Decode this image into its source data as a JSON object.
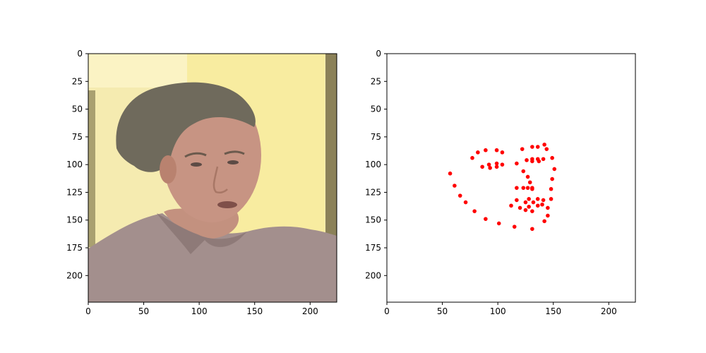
{
  "chart_data": [
    {
      "type": "image",
      "title": "",
      "xlabel": "",
      "ylabel": "",
      "xlim": [
        0,
        224
      ],
      "ylim": [
        224,
        0
      ],
      "x_ticks": [
        0,
        50,
        100,
        150,
        200
      ],
      "y_ticks": [
        0,
        25,
        50,
        75,
        100,
        125,
        150,
        175,
        200
      ],
      "image_content": "photo-frame-man-face",
      "colors": {
        "background_wall": "#f5ebb0",
        "bright_wall": "#fbf3c4",
        "hair": "#6f6a5c",
        "skin": "#c79483",
        "shirt": "#a38f8d",
        "door_frame": "#8b8158"
      }
    },
    {
      "type": "scatter",
      "title": "",
      "xlabel": "",
      "ylabel": "",
      "xlim": [
        0,
        224
      ],
      "ylim": [
        224,
        0
      ],
      "x_ticks": [
        0,
        50,
        100,
        150,
        200
      ],
      "y_ticks": [
        0,
        25,
        50,
        75,
        100,
        125,
        150,
        175,
        200
      ],
      "marker_color": "#ff0000",
      "points": [
        [
          57,
          108
        ],
        [
          61,
          119
        ],
        [
          66,
          128
        ],
        [
          71,
          134
        ],
        [
          79,
          142
        ],
        [
          89,
          149
        ],
        [
          101,
          153
        ],
        [
          115,
          156
        ],
        [
          131,
          158
        ],
        [
          142,
          151
        ],
        [
          145,
          146
        ],
        [
          145,
          139
        ],
        [
          148,
          131
        ],
        [
          148,
          122
        ],
        [
          149,
          113
        ],
        [
          151,
          104
        ],
        [
          149,
          94
        ],
        [
          77,
          94
        ],
        [
          82,
          89
        ],
        [
          89,
          87
        ],
        [
          99,
          87
        ],
        [
          104,
          89
        ],
        [
          122,
          86
        ],
        [
          131,
          84
        ],
        [
          136,
          84
        ],
        [
          142,
          82
        ],
        [
          144,
          86
        ],
        [
          117,
          99
        ],
        [
          123,
          106
        ],
        [
          127,
          111
        ],
        [
          129,
          116
        ],
        [
          131,
          121
        ],
        [
          117,
          121
        ],
        [
          123,
          121
        ],
        [
          127,
          121
        ],
        [
          131,
          122
        ],
        [
          117,
          132
        ],
        [
          120,
          139
        ],
        [
          125,
          134
        ],
        [
          128,
          131
        ],
        [
          132,
          134
        ],
        [
          136,
          131
        ],
        [
          141,
          132
        ],
        [
          112,
          137
        ],
        [
          128,
          138
        ],
        [
          136,
          137
        ],
        [
          140,
          136
        ],
        [
          125,
          141
        ],
        [
          131,
          142
        ],
        [
          86,
          102
        ],
        [
          92,
          100
        ],
        [
          99,
          99
        ],
        [
          104,
          100
        ],
        [
          99,
          102
        ],
        [
          93,
          103
        ],
        [
          126,
          96
        ],
        [
          131,
          95
        ],
        [
          136,
          95
        ],
        [
          141,
          95
        ],
        [
          137,
          97
        ],
        [
          131,
          97
        ]
      ]
    }
  ]
}
